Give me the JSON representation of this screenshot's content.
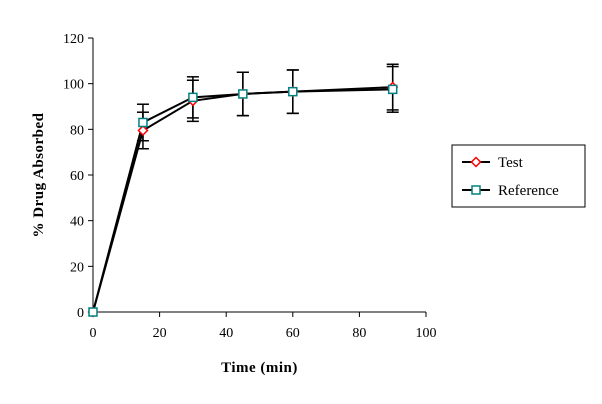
{
  "chart_data": {
    "type": "line",
    "title": "",
    "xlabel": "Time (min)",
    "ylabel": "% Drug Absorbed",
    "xlim": [
      0,
      100
    ],
    "ylim": [
      0,
      120
    ],
    "x_ticks": [
      0,
      20,
      40,
      60,
      80,
      100
    ],
    "y_ticks": [
      0,
      20,
      40,
      60,
      80,
      100,
      120
    ],
    "grid": false,
    "legend_position": "right",
    "series": [
      {
        "name": "Test",
        "marker": "diamond",
        "color": "#ff0000",
        "line_color": "#000000",
        "x": [
          0,
          15,
          30,
          45,
          60,
          90
        ],
        "y": [
          0,
          79.5,
          92.5,
          95.5,
          96.5,
          98.5
        ],
        "error": [
          0,
          8,
          9,
          9.5,
          9.5,
          10
        ]
      },
      {
        "name": "Reference",
        "marker": "square",
        "color": "#008080",
        "line_color": "#000000",
        "x": [
          0,
          15,
          30,
          45,
          60,
          90
        ],
        "y": [
          0,
          83,
          94,
          95.5,
          96.5,
          97.5
        ],
        "error": [
          0,
          8,
          9,
          9.5,
          9.5,
          10
        ]
      }
    ]
  }
}
